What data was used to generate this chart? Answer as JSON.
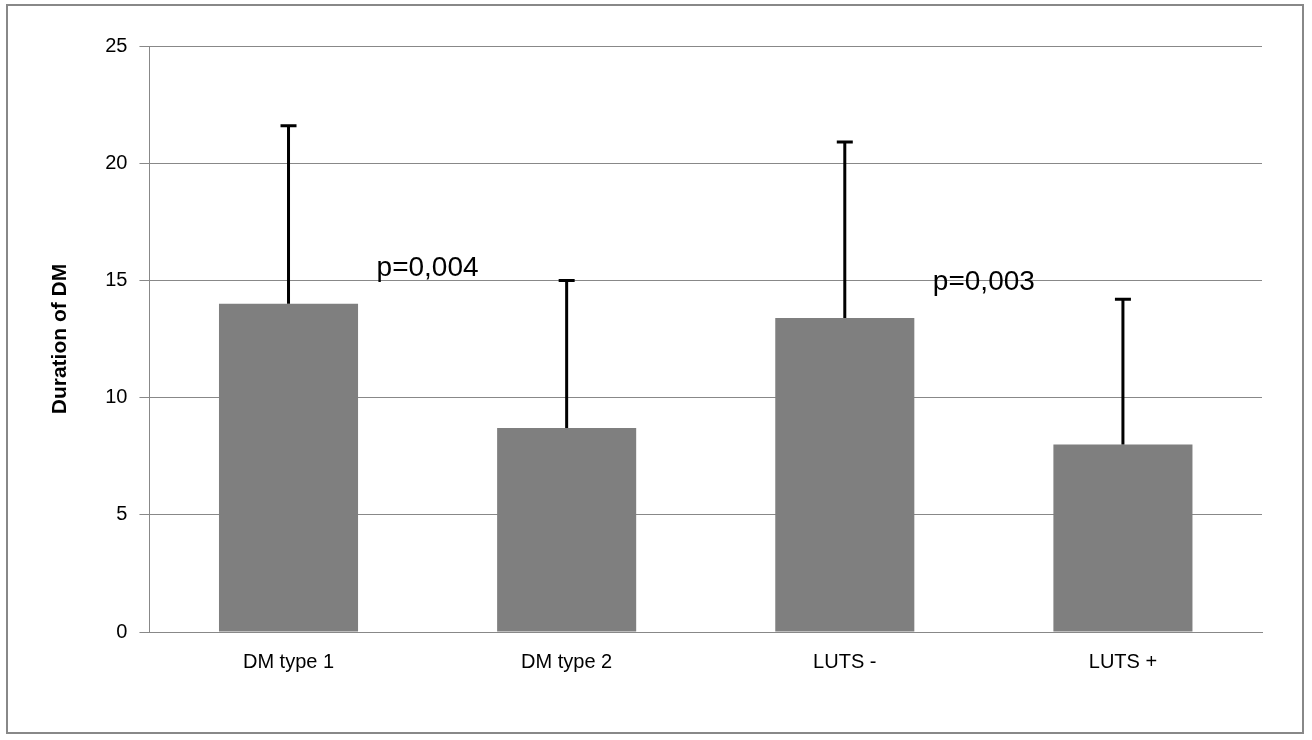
{
  "chart_data": {
    "type": "bar",
    "ylabel": "Duration of DM",
    "categories": [
      "DM type 1",
      "DM type 2",
      "LUTS -",
      "LUTS +"
    ],
    "values": [
      14,
      8.7,
      13.4,
      8.0
    ],
    "errors": [
      [
        14,
        21.6
      ],
      [
        8.7,
        15.0
      ],
      [
        13.4,
        20.9
      ],
      [
        8.0,
        14.2
      ]
    ],
    "color": "#7f7f7f",
    "ylim": [
      0,
      25
    ],
    "yticks": [
      0,
      5,
      10,
      15,
      20,
      25
    ],
    "grid": "y",
    "annotations": [
      "p=0,004",
      "p=0,003"
    ]
  }
}
